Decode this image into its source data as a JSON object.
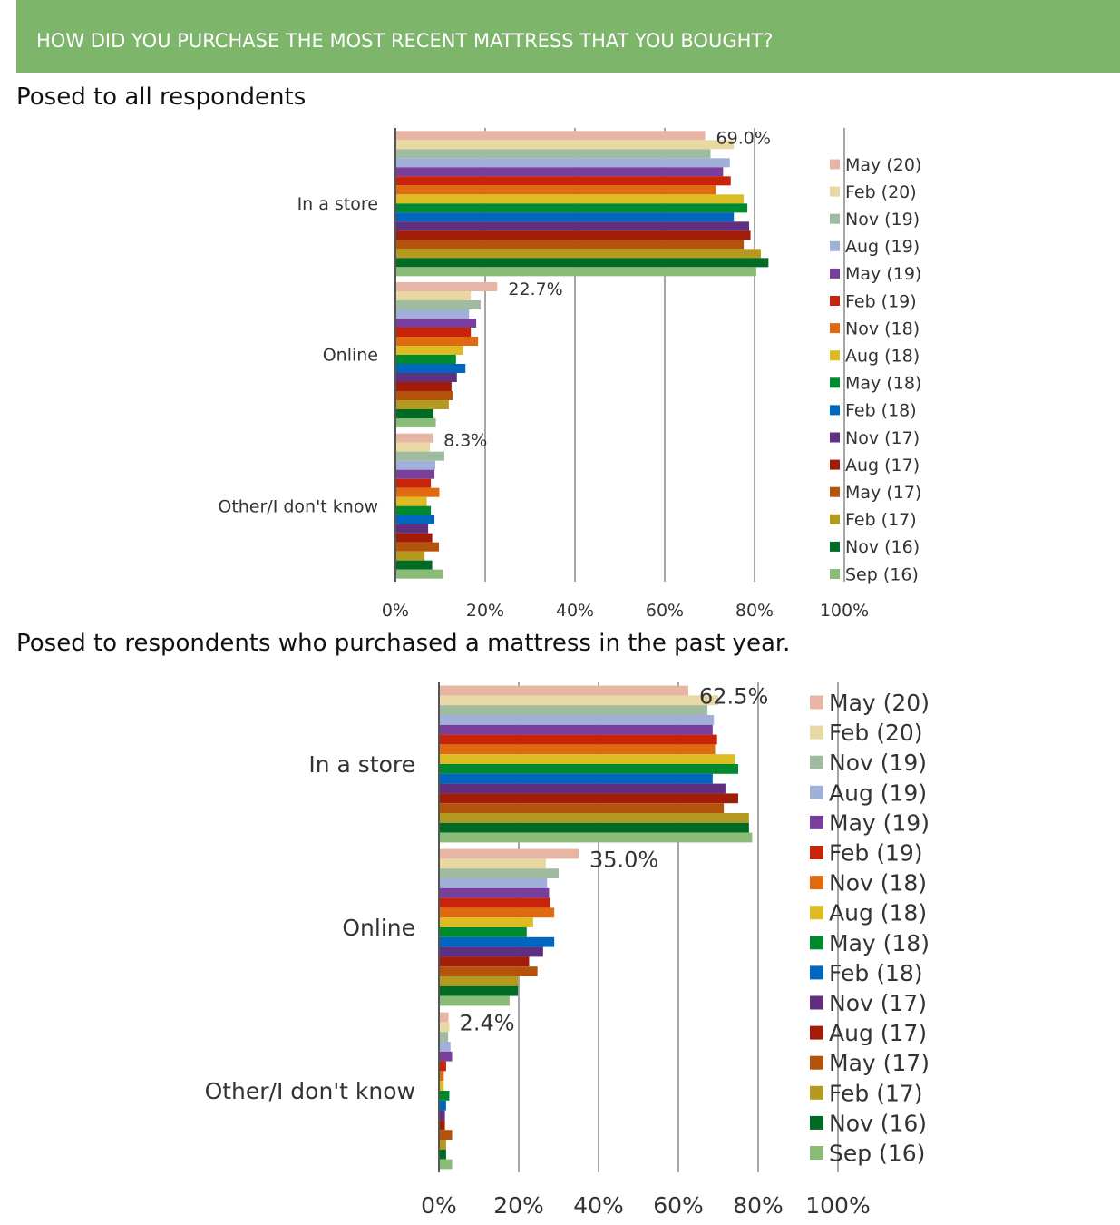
{
  "header": {
    "title": "HOW DID YOU PURCHASE THE MOST RECENT MATTRESS THAT YOU BOUGHT?"
  },
  "sections": [
    {
      "subtitle": "Posed to all respondents"
    },
    {
      "subtitle": "Posed to respondents who purchased a mattress in the past year."
    }
  ],
  "colors": {
    "banner": "#7DB66B",
    "gridline": "#A6A6A6",
    "axis": "#555555"
  },
  "chart_data": [
    {
      "type": "bar",
      "orientation": "horizontal",
      "title": "Posed to all respondents",
      "categories": [
        "In a store",
        "Online",
        "Other/I don't know"
      ],
      "xlim": [
        0,
        100
      ],
      "xticks": [
        "0%",
        "20%",
        "40%",
        "60%",
        "80%",
        "100%"
      ],
      "grid": true,
      "legend_position": "right",
      "data_labels": [
        "69.0%",
        "22.7%",
        "8.3%"
      ],
      "series": [
        {
          "name": "May (20)",
          "color": "#E8B4A4",
          "values": [
            69.0,
            22.7,
            8.3
          ]
        },
        {
          "name": "Feb (20)",
          "color": "#E8D8A4",
          "values": [
            75.4,
            16.8,
            7.7
          ]
        },
        {
          "name": "Nov (19)",
          "color": "#A0BCA0",
          "values": [
            70.2,
            19.0,
            10.9
          ]
        },
        {
          "name": "Aug (19)",
          "color": "#A0B0D8",
          "values": [
            74.5,
            16.4,
            8.9
          ]
        },
        {
          "name": "May (19)",
          "color": "#7A3F9C",
          "values": [
            73.0,
            18.0,
            8.7
          ]
        },
        {
          "name": "Feb (19)",
          "color": "#C8240A",
          "values": [
            74.7,
            16.8,
            7.9
          ]
        },
        {
          "name": "Nov (18)",
          "color": "#E06A10",
          "values": [
            71.4,
            18.4,
            9.8
          ]
        },
        {
          "name": "Aug (18)",
          "color": "#DCBC22",
          "values": [
            77.6,
            15.1,
            7.0
          ]
        },
        {
          "name": "May (18)",
          "color": "#008A30",
          "values": [
            78.4,
            13.5,
            7.9
          ]
        },
        {
          "name": "Feb (18)",
          "color": "#0066C0",
          "values": [
            75.4,
            15.6,
            8.7
          ]
        },
        {
          "name": "Nov (17)",
          "color": "#5F3080",
          "values": [
            78.8,
            13.7,
            7.3
          ]
        },
        {
          "name": "Aug (17)",
          "color": "#A21C08",
          "values": [
            79.1,
            12.5,
            8.2
          ]
        },
        {
          "name": "May (17)",
          "color": "#B4540C",
          "values": [
            77.6,
            12.8,
            9.7
          ]
        },
        {
          "name": "Feb (17)",
          "color": "#B49A1E",
          "values": [
            81.4,
            11.9,
            6.5
          ]
        },
        {
          "name": "Nov (16)",
          "color": "#006B24",
          "values": [
            83.1,
            8.5,
            8.2
          ]
        },
        {
          "name": "Sep (16)",
          "color": "#8ABC78",
          "values": [
            80.4,
            9.0,
            10.6
          ]
        }
      ]
    },
    {
      "type": "bar",
      "orientation": "horizontal",
      "title": "Posed to respondents who purchased a mattress in the past year.",
      "categories": [
        "In a store",
        "Online",
        "Other/I don't know"
      ],
      "xlim": [
        0,
        100
      ],
      "xticks": [
        "0%",
        "20%",
        "40%",
        "60%",
        "80%",
        "100%"
      ],
      "grid": true,
      "legend_position": "right",
      "data_labels": [
        "62.5%",
        "35.0%",
        "2.4%"
      ],
      "series": [
        {
          "name": "May (20)",
          "color": "#E8B4A4",
          "values": [
            62.5,
            35.0,
            2.4
          ]
        },
        {
          "name": "Feb (20)",
          "color": "#E8D8A4",
          "values": [
            70.0,
            26.8,
            2.6
          ]
        },
        {
          "name": "Nov (19)",
          "color": "#A0BCA0",
          "values": [
            67.3,
            30.0,
            2.3
          ]
        },
        {
          "name": "Aug (19)",
          "color": "#A0B0D8",
          "values": [
            68.9,
            27.1,
            2.9
          ]
        },
        {
          "name": "May (19)",
          "color": "#7A3F9C",
          "values": [
            68.6,
            27.6,
            3.3
          ]
        },
        {
          "name": "Feb (19)",
          "color": "#C8240A",
          "values": [
            69.7,
            27.9,
            1.8
          ]
        },
        {
          "name": "Nov (18)",
          "color": "#E06A10",
          "values": [
            69.2,
            28.9,
            1.2
          ]
        },
        {
          "name": "Aug (18)",
          "color": "#DCBC22",
          "values": [
            74.2,
            23.6,
            1.2
          ]
        },
        {
          "name": "May (18)",
          "color": "#008A30",
          "values": [
            75.0,
            22.0,
            2.6
          ]
        },
        {
          "name": "Feb (18)",
          "color": "#0066C0",
          "values": [
            68.6,
            28.9,
            1.8
          ]
        },
        {
          "name": "Nov (17)",
          "color": "#5F3080",
          "values": [
            71.8,
            26.1,
            1.5
          ]
        },
        {
          "name": "Aug (17)",
          "color": "#A21C08",
          "values": [
            75.0,
            22.6,
            1.5
          ]
        },
        {
          "name": "May (17)",
          "color": "#B4540C",
          "values": [
            71.4,
            24.7,
            3.3
          ]
        },
        {
          "name": "Feb (17)",
          "color": "#B49A1E",
          "values": [
            77.7,
            19.8,
            1.8
          ]
        },
        {
          "name": "Nov (16)",
          "color": "#006B24",
          "values": [
            77.7,
            19.8,
            1.8
          ]
        },
        {
          "name": "Sep (16)",
          "color": "#8ABC78",
          "values": [
            78.5,
            17.7,
            3.3
          ]
        }
      ]
    }
  ]
}
